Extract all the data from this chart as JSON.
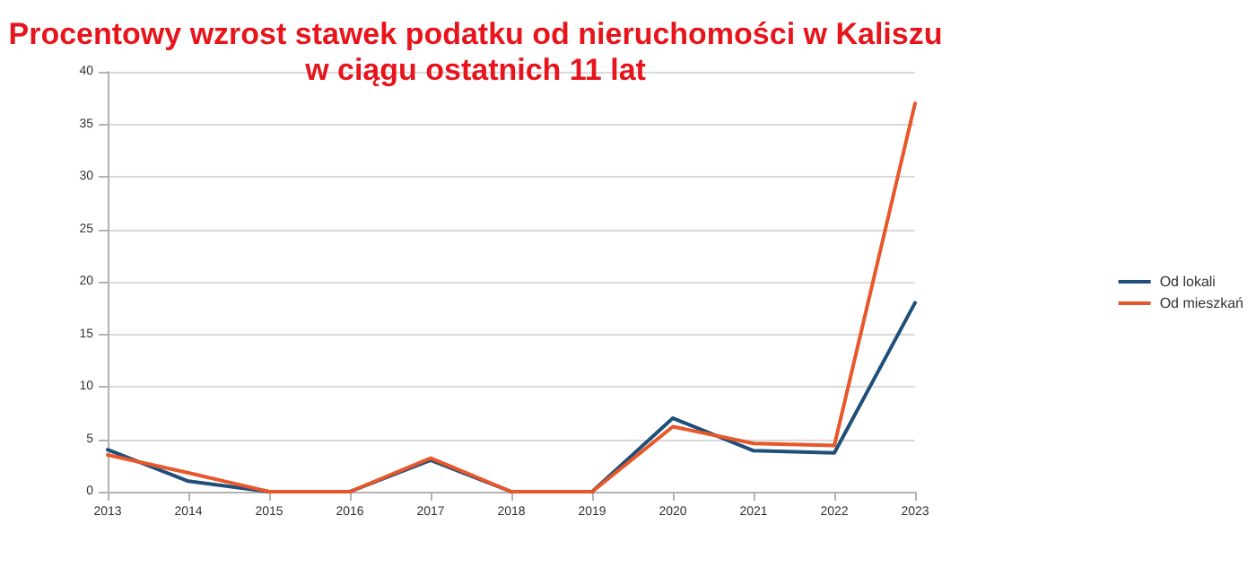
{
  "chart_data": {
    "type": "line",
    "title": "Procentowy wzrost stawek podatku od nieruchomości w Kaliszu\nw ciągu ostatnich 11 lat",
    "categories": [
      "2013",
      "2014",
      "2015",
      "2016",
      "2017",
      "2018",
      "2019",
      "2020",
      "2021",
      "2022",
      "2023"
    ],
    "series": [
      {
        "name": "Od lokali",
        "color": "#1f4e79",
        "values": [
          4,
          1,
          0,
          0,
          3,
          0,
          0,
          7,
          3.9,
          3.7,
          18
        ]
      },
      {
        "name": "Od mieszkań",
        "color": "#e8572a",
        "values": [
          3.5,
          1.8,
          0,
          0,
          3.2,
          0,
          0,
          6.2,
          4.6,
          4.4,
          37
        ]
      }
    ],
    "ylim": [
      0,
      40
    ],
    "yticks": [
      0,
      5,
      10,
      15,
      20,
      25,
      30,
      35,
      40
    ],
    "grid": "y",
    "legend": "right",
    "marker": "none",
    "line_style": "solid"
  }
}
